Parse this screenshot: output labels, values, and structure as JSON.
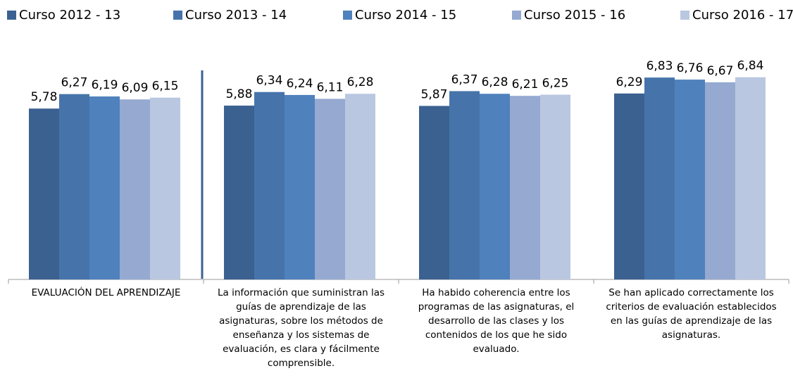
{
  "chart_data": {
    "type": "bar",
    "categories": [
      "EVALUACIÓN DEL APRENDIZAJE",
      "La información que suministran las guías de aprendizaje de las asignaturas, sobre los métodos de enseñanza y los sistemas de evaluación, es clara y fácilmente comprensible.",
      "Ha habido coherencia entre los programas de las asignaturas, el desarrollo de las clases y los contenidos de los que he sido evaluado.",
      "Se han aplicado correctamente los criterios de evaluación establecidos en las guías de aprendizaje de las asignaturas."
    ],
    "series": [
      {
        "name": "Curso 2012 - 13",
        "color": "#3b6191",
        "values": [
          5.78,
          5.88,
          5.87,
          6.29
        ],
        "value_labels": [
          "5,78",
          "5,88",
          "5,87",
          "6,29"
        ]
      },
      {
        "name": "Curso 2013 - 14",
        "color": "#4674aa",
        "values": [
          6.27,
          6.34,
          6.37,
          6.83
        ],
        "value_labels": [
          "6,27",
          "6,34",
          "6,37",
          "6,83"
        ]
      },
      {
        "name": "Curso 2014 - 15",
        "color": "#4f81bd",
        "values": [
          6.19,
          6.24,
          6.28,
          6.76
        ],
        "value_labels": [
          "6,19",
          "6,24",
          "6,28",
          "6,76"
        ]
      },
      {
        "name": "Curso 2015 - 16",
        "color": "#95a9d1",
        "values": [
          6.09,
          6.11,
          6.21,
          6.67
        ],
        "value_labels": [
          "6,09",
          "6,11",
          "6,21",
          "6,67"
        ]
      },
      {
        "name": "Curso 2016 - 17",
        "color": "#bac7e1",
        "values": [
          6.15,
          6.28,
          6.25,
          6.84
        ],
        "value_labels": [
          "6,15",
          "6,28",
          "6,25",
          "6,84"
        ]
      }
    ],
    "ylim": [
      0,
      8
    ],
    "legend": "top"
  }
}
